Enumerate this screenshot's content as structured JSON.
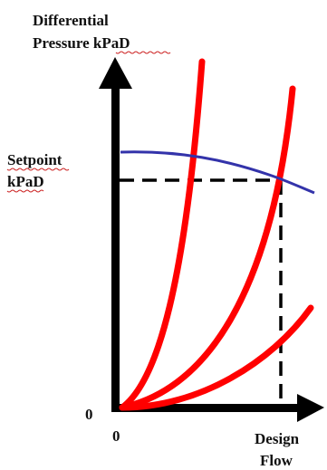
{
  "axes": {
    "y_label_line1": "Differential",
    "y_label_line2": "Pressure kPaD",
    "setpoint_line1": "Setpoint",
    "setpoint_line2": "kPaD",
    "origin_y": "0",
    "origin_x": "0",
    "x_label_line1": "Design",
    "x_label_line2": "Flow"
  },
  "colors": {
    "axis": "#000000",
    "system_curves": "#ff0000",
    "pump_curve": "#3333aa",
    "dashed_guides": "#000000"
  }
}
